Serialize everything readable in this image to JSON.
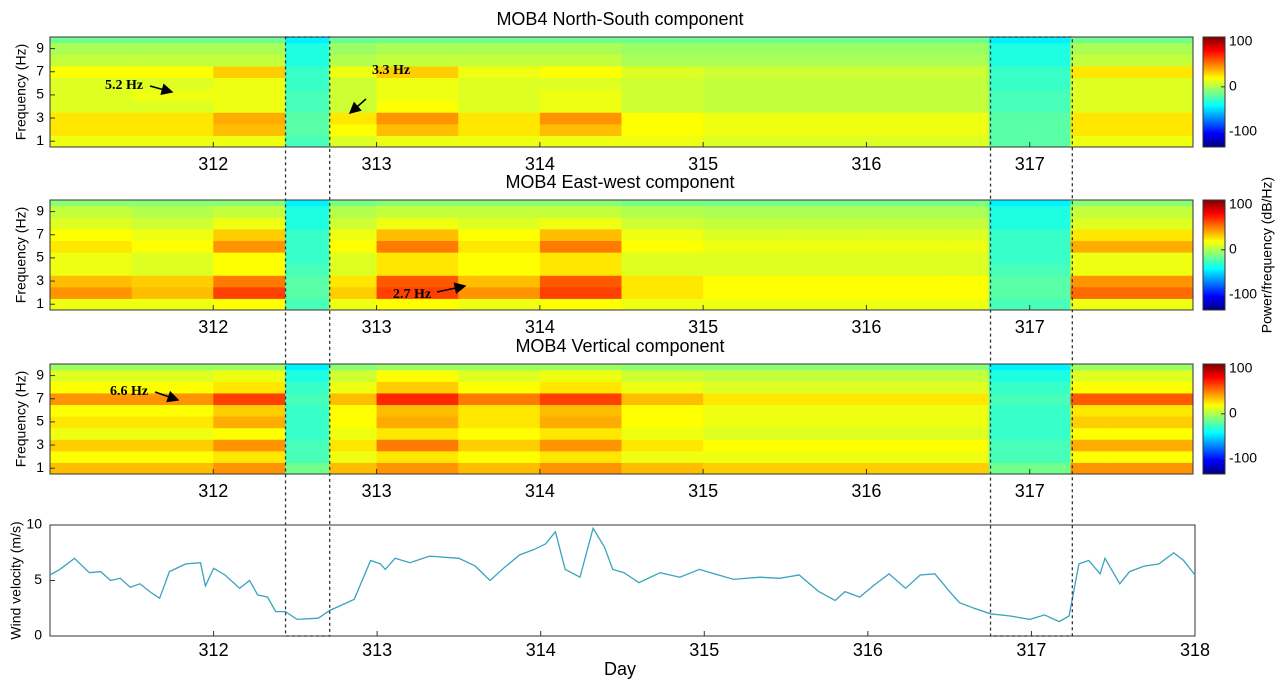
{
  "chart_data": [
    {
      "type": "heatmap",
      "title": "MOB4 North-South component",
      "ylabel": "Frequency (Hz)",
      "xbins": [
        311,
        311.5,
        312,
        312.44,
        312.71,
        313,
        313.5,
        314,
        314.5,
        315,
        315.5,
        316,
        316.5,
        316.75,
        317.25,
        317.5,
        318
      ],
      "ybins": [
        0.5,
        1.5,
        2.5,
        3.5,
        4.5,
        5.5,
        6.5,
        7.5,
        8.5,
        9.5,
        10
      ],
      "z": [
        [
          15,
          15,
          15,
          -25,
          11,
          15,
          15,
          15,
          15,
          11,
          11,
          11,
          11,
          -21,
          15,
          15
        ],
        [
          25,
          25,
          35,
          -21,
          19,
          35,
          25,
          35,
          19,
          15,
          15,
          15,
          15,
          -21,
          25,
          25
        ],
        [
          25,
          25,
          39,
          -21,
          25,
          45,
          25,
          45,
          19,
          15,
          15,
          15,
          15,
          -21,
          25,
          25
        ],
        [
          11,
          11,
          15,
          -25,
          7,
          19,
          11,
          15,
          7,
          5,
          5,
          5,
          5,
          -25,
          11,
          11
        ],
        [
          11,
          15,
          15,
          -25,
          7,
          15,
          11,
          15,
          7,
          5,
          5,
          5,
          5,
          -25,
          11,
          11
        ],
        [
          11,
          11,
          15,
          -29,
          7,
          15,
          11,
          11,
          7,
          5,
          5,
          5,
          5,
          -29,
          11,
          11
        ],
        [
          19,
          19,
          31,
          -29,
          15,
          31,
          15,
          19,
          11,
          7,
          7,
          7,
          7,
          -29,
          25,
          25
        ],
        [
          5,
          5,
          5,
          -35,
          1,
          5,
          5,
          5,
          -1,
          -1,
          -1,
          -1,
          -1,
          -35,
          5,
          5
        ],
        [
          -1,
          -1,
          -1,
          -35,
          -5,
          -1,
          -1,
          -1,
          -5,
          -5,
          -5,
          -5,
          -5,
          -35,
          -1,
          -1
        ],
        [
          -15,
          -15,
          -15,
          -45,
          -17,
          -15,
          -15,
          -15,
          -15,
          -15,
          -15,
          -15,
          -15,
          -45,
          -15,
          -15
        ]
      ],
      "xlim": [
        311,
        318
      ],
      "ylim": [
        0.5,
        10
      ],
      "xticks": [
        312,
        313,
        314,
        315,
        316,
        317
      ],
      "yticks": [
        1,
        3,
        5,
        7,
        9
      ],
      "colormap": "jet",
      "clim": [
        -134,
        111
      ],
      "cticks": [
        -100,
        0,
        100
      ],
      "annotations": [
        "5.2 Hz",
        "3.3 Hz"
      ]
    },
    {
      "type": "heatmap",
      "title": "MOB4 East-west component",
      "ylabel": "Frequency (Hz)",
      "xbins": [
        311,
        311.5,
        312,
        312.44,
        312.71,
        313,
        313.5,
        314,
        314.5,
        315,
        315.5,
        316,
        316.5,
        316.75,
        317.25,
        317.5,
        318
      ],
      "ybins": [
        0.5,
        1.5,
        2.5,
        3.5,
        4.5,
        5.5,
        6.5,
        7.5,
        8.5,
        9.5,
        10
      ],
      "z": [
        [
          15,
          15,
          19,
          -25,
          15,
          19,
          15,
          19,
          15,
          15,
          15,
          15,
          15,
          -25,
          15,
          15
        ],
        [
          45,
          35,
          65,
          -21,
          31,
          65,
          45,
          65,
          25,
          19,
          19,
          19,
          19,
          -21,
          55,
          55
        ],
        [
          35,
          31,
          51,
          -21,
          25,
          59,
          35,
          59,
          25,
          19,
          19,
          19,
          19,
          -21,
          45,
          45
        ],
        [
          15,
          11,
          19,
          -25,
          11,
          25,
          19,
          25,
          11,
          11,
          11,
          11,
          11,
          -25,
          15,
          15
        ],
        [
          15,
          11,
          19,
          -29,
          11,
          25,
          19,
          25,
          11,
          11,
          11,
          11,
          11,
          -29,
          15,
          15
        ],
        [
          25,
          19,
          45,
          -29,
          19,
          51,
          25,
          51,
          19,
          15,
          15,
          15,
          15,
          -29,
          39,
          39
        ],
        [
          19,
          15,
          31,
          -29,
          15,
          35,
          19,
          35,
          15,
          11,
          11,
          11,
          11,
          -29,
          25,
          25
        ],
        [
          11,
          7,
          15,
          -35,
          7,
          15,
          11,
          15,
          7,
          5,
          5,
          5,
          5,
          -35,
          11,
          11
        ],
        [
          5,
          1,
          5,
          -35,
          1,
          5,
          5,
          5,
          1,
          -1,
          -1,
          -1,
          -1,
          -35,
          5,
          5
        ],
        [
          -9,
          -9,
          -9,
          -45,
          -13,
          -9,
          -9,
          -9,
          -13,
          -13,
          -13,
          -13,
          -13,
          -45,
          -9,
          -9
        ]
      ],
      "xlim": [
        311,
        318
      ],
      "ylim": [
        0.5,
        10
      ],
      "xticks": [
        312,
        313,
        314,
        315,
        316,
        317
      ],
      "yticks": [
        1,
        3,
        5,
        7,
        9
      ],
      "colormap": "jet",
      "clim": [
        -134,
        111
      ],
      "cticks": [
        -100,
        0,
        100
      ],
      "annotations": [
        "2.7 Hz"
      ]
    },
    {
      "type": "heatmap",
      "title": "MOB4 Vertical component",
      "ylabel": "Frequency (Hz)",
      "xbins": [
        311,
        311.5,
        312,
        312.44,
        312.71,
        313,
        313.5,
        314,
        314.5,
        315,
        315.5,
        316,
        316.5,
        316.75,
        317.25,
        317.5,
        318
      ],
      "ybins": [
        0.5,
        1.5,
        2.5,
        3.5,
        4.5,
        5.5,
        6.5,
        7.5,
        8.5,
        9.5,
        10
      ],
      "z": [
        [
          35,
          35,
          45,
          -15,
          35,
          45,
          35,
          45,
          35,
          31,
          31,
          31,
          31,
          -15,
          45,
          45
        ],
        [
          19,
          19,
          25,
          -25,
          15,
          25,
          19,
          25,
          15,
          15,
          15,
          15,
          15,
          -25,
          19,
          19
        ],
        [
          31,
          31,
          45,
          -25,
          25,
          51,
          31,
          45,
          25,
          19,
          19,
          19,
          19,
          -25,
          39,
          39
        ],
        [
          15,
          15,
          19,
          -29,
          15,
          25,
          19,
          25,
          15,
          11,
          11,
          11,
          11,
          -29,
          19,
          19
        ],
        [
          25,
          25,
          39,
          -29,
          19,
          39,
          25,
          39,
          19,
          15,
          15,
          15,
          15,
          -29,
          31,
          31
        ],
        [
          19,
          19,
          31,
          -29,
          19,
          35,
          25,
          35,
          19,
          15,
          15,
          15,
          15,
          -29,
          25,
          25
        ],
        [
          45,
          45,
          65,
          -25,
          35,
          71,
          51,
          65,
          35,
          25,
          25,
          25,
          25,
          -25,
          59,
          59
        ],
        [
          19,
          19,
          25,
          -29,
          15,
          31,
          19,
          25,
          15,
          11,
          11,
          11,
          11,
          -29,
          19,
          19
        ],
        [
          11,
          11,
          15,
          -35,
          7,
          19,
          11,
          15,
          7,
          5,
          5,
          5,
          5,
          -35,
          11,
          11
        ],
        [
          -5,
          -5,
          -5,
          -45,
          -9,
          -5,
          -5,
          -5,
          -9,
          -9,
          -9,
          -9,
          -9,
          -45,
          -5,
          -5
        ]
      ],
      "xlim": [
        311,
        318
      ],
      "ylim": [
        0.5,
        10
      ],
      "xticks": [
        312,
        313,
        314,
        315,
        316,
        317
      ],
      "yticks": [
        1,
        3,
        5,
        7,
        9
      ],
      "colormap": "jet",
      "clim": [
        -134,
        111
      ],
      "cticks": [
        -100,
        0,
        100
      ],
      "annotations": [
        "6.6 Hz"
      ]
    },
    {
      "type": "line",
      "xlabel": "Day",
      "ylabel": "Wind velocity (m/s)",
      "color": "#3aa3bf",
      "x": [
        311.0,
        311.06,
        311.15,
        311.24,
        311.31,
        311.37,
        311.43,
        311.49,
        311.55,
        311.61,
        311.67,
        311.73,
        311.83,
        311.92,
        311.95,
        312.0,
        312.07,
        312.16,
        312.22,
        312.27,
        312.33,
        312.38,
        312.44,
        312.51,
        312.64,
        312.71,
        312.86,
        312.96,
        313.02,
        313.05,
        313.11,
        313.2,
        313.32,
        313.5,
        313.6,
        313.69,
        313.78,
        313.87,
        313.96,
        314.03,
        314.09,
        314.15,
        314.24,
        314.32,
        314.39,
        314.44,
        314.51,
        314.6,
        314.73,
        314.85,
        314.97,
        315.06,
        315.18,
        315.34,
        315.46,
        315.58,
        315.7,
        315.8,
        315.86,
        315.95,
        316.04,
        316.13,
        316.23,
        316.32,
        316.41,
        316.5,
        316.56,
        316.65,
        316.75,
        316.87,
        316.99,
        317.08,
        317.17,
        317.23,
        317.29,
        317.35,
        317.42,
        317.45,
        317.54,
        317.6,
        317.69,
        317.78,
        317.87,
        317.93,
        318.0
      ],
      "values": [
        5.5,
        6.0,
        7.0,
        5.7,
        5.8,
        5.0,
        5.2,
        4.4,
        4.7,
        4.0,
        3.4,
        5.8,
        6.5,
        6.6,
        4.5,
        6.1,
        5.5,
        4.3,
        5.0,
        3.7,
        3.5,
        2.2,
        2.2,
        1.5,
        1.6,
        2.3,
        3.3,
        6.8,
        6.5,
        6.0,
        7.0,
        6.6,
        7.2,
        7.0,
        6.3,
        5.0,
        6.2,
        7.3,
        7.8,
        8.3,
        9.4,
        6.0,
        5.3,
        9.7,
        8.0,
        6.0,
        5.7,
        4.8,
        5.7,
        5.3,
        6.0,
        5.6,
        5.1,
        5.3,
        5.2,
        5.5,
        4.0,
        3.2,
        4.0,
        3.5,
        4.6,
        5.6,
        4.3,
        5.5,
        5.6,
        4.0,
        3.0,
        2.5,
        2.0,
        1.8,
        1.5,
        1.9,
        1.3,
        1.8,
        6.5,
        6.8,
        5.6,
        7.0,
        4.7,
        5.8,
        6.3,
        6.5,
        7.5,
        6.8,
        5.5
      ],
      "xlim": [
        311,
        318
      ],
      "ylim": [
        0,
        10
      ],
      "xticks": [
        312,
        313,
        314,
        315,
        316,
        317,
        318
      ],
      "yticks": [
        0,
        5,
        10
      ]
    }
  ],
  "colorbar_label": "Power/frequency (dB/Hz)",
  "highlight_spans": [
    [
      312.44,
      312.71
    ],
    [
      316.75,
      317.25
    ]
  ]
}
